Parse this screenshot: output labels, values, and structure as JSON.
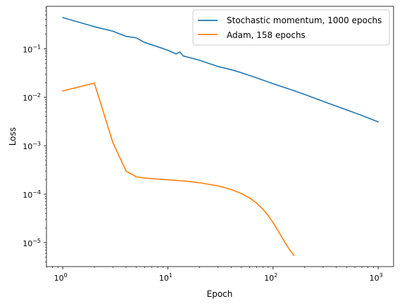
{
  "chart_data": {
    "type": "line",
    "title": "",
    "xlabel": "Epoch",
    "ylabel": "Loss",
    "xscale": "log",
    "yscale": "log",
    "xlim": [
      0.7,
      1400
    ],
    "ylim": [
      3.2e-06,
      0.75
    ],
    "xticks": [
      {
        "value": 1,
        "label": "10",
        "exp": "0"
      },
      {
        "value": 10,
        "label": "10",
        "exp": "1"
      },
      {
        "value": 100,
        "label": "10",
        "exp": "2"
      },
      {
        "value": 1000,
        "label": "10",
        "exp": "3"
      }
    ],
    "yticks": [
      {
        "value": 1e-05,
        "label": "10",
        "exp": "−5"
      },
      {
        "value": 0.0001,
        "label": "10",
        "exp": "−4"
      },
      {
        "value": 0.001,
        "label": "10",
        "exp": "−3"
      },
      {
        "value": 0.01,
        "label": "10",
        "exp": "−2"
      },
      {
        "value": 0.1,
        "label": "10",
        "exp": "−1"
      }
    ],
    "grid": false,
    "legend_position": "top-right",
    "series": [
      {
        "name": "Stochastic momentum, 1000 epochs",
        "color": "#1f77b4",
        "x": [
          1,
          2,
          3,
          4,
          5,
          6,
          8,
          10,
          12,
          13,
          14,
          20,
          25,
          30,
          40,
          50,
          70,
          100,
          150,
          200,
          300,
          500,
          700,
          1000
        ],
        "y": [
          0.44,
          0.285,
          0.23,
          0.18,
          0.168,
          0.135,
          0.11,
          0.093,
          0.078,
          0.086,
          0.071,
          0.058,
          0.049,
          0.043,
          0.037,
          0.032,
          0.025,
          0.019,
          0.0142,
          0.0114,
          0.0082,
          0.0055,
          0.0042,
          0.0031
        ]
      },
      {
        "name": "Adam, 158 epochs",
        "color": "#ff7f0e",
        "x": [
          1,
          2,
          3,
          4,
          5,
          6,
          8,
          10,
          15,
          20,
          30,
          40,
          50,
          60,
          70,
          80,
          90,
          100,
          110,
          120,
          130,
          140,
          150,
          158
        ],
        "y": [
          0.0135,
          0.0195,
          0.00115,
          0.0003,
          0.000228,
          0.000215,
          0.000205,
          0.000198,
          0.000185,
          0.000172,
          0.000148,
          0.000125,
          0.000103,
          8.3e-05,
          6.5e-05,
          4.9e-05,
          3.6e-05,
          2.6e-05,
          1.85e-05,
          1.35e-05,
          1e-05,
          7.8e-06,
          6.3e-06,
          5.5e-06
        ]
      }
    ]
  }
}
